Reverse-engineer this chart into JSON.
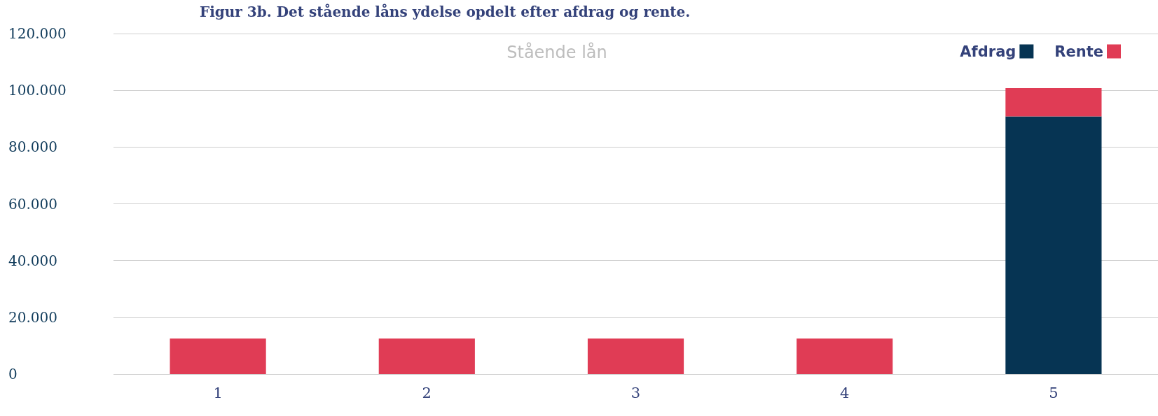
{
  "chart_data": {
    "type": "bar",
    "title": "Figur 3b. Det stående låns ydelse opdelt efter afdrag og rente.",
    "subtitle": "Stående lån",
    "categories": [
      "1",
      "2",
      "3",
      "4",
      "5"
    ],
    "stacked": true,
    "series": [
      {
        "name": "Afdrag",
        "color": "#063453",
        "values": [
          0,
          0,
          0,
          0,
          90800
        ]
      },
      {
        "name": "Rente",
        "color": "#e03c55",
        "values": [
          12500,
          12500,
          12500,
          12500,
          10000
        ]
      }
    ],
    "ylim": [
      0,
      120000
    ],
    "yticks": [
      {
        "value": 0,
        "label": "0"
      },
      {
        "value": 20000,
        "label": "20.000"
      },
      {
        "value": 40000,
        "label": "40.000"
      },
      {
        "value": 60000,
        "label": "60.000"
      },
      {
        "value": 80000,
        "label": "80.000"
      },
      {
        "value": 100000,
        "label": "100.000"
      },
      {
        "value": 120000,
        "label": "120.000"
      }
    ],
    "grid": "y",
    "legend": "top right"
  }
}
